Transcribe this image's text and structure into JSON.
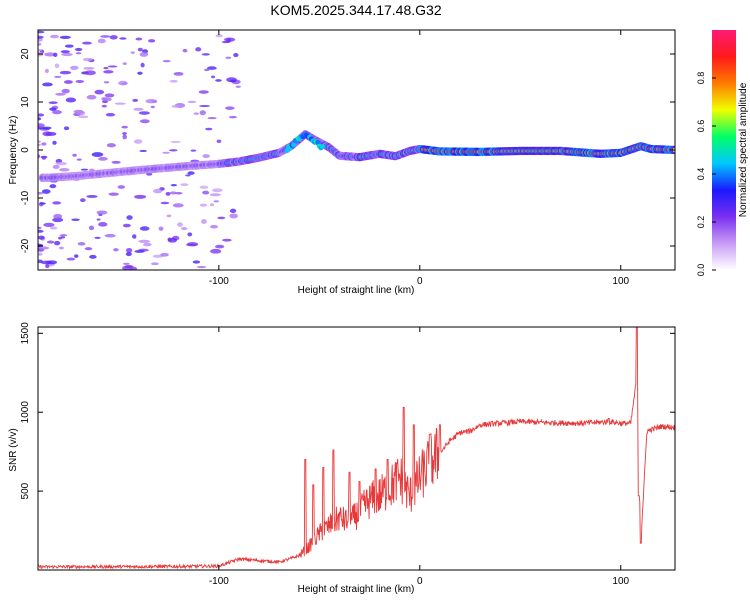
{
  "title": "KOM5.2025.344.17.48.G32",
  "chart_data": [
    {
      "type": "heatmap",
      "name": "spectrogram",
      "xlabel": "Height of straight line (km)",
      "ylabel": "Frequency (Hz)",
      "xlim": [
        -190,
        127
      ],
      "ylim": [
        -25,
        25
      ],
      "xticks": [
        -100,
        0,
        100
      ],
      "yticks": [
        -20,
        -10,
        0,
        10,
        20
      ],
      "trend_track": [
        [
          -185,
          -5.8
        ],
        [
          -170,
          -5.4
        ],
        [
          -155,
          -4.8
        ],
        [
          -140,
          -4.2
        ],
        [
          -120,
          -3.5
        ],
        [
          -100,
          -2.9
        ],
        [
          -90,
          -2.4
        ],
        [
          -80,
          -1.6
        ],
        [
          -70,
          -0.6
        ],
        [
          -64,
          0.8
        ],
        [
          -60,
          2.2
        ],
        [
          -57,
          3.3
        ],
        [
          -53,
          2.3
        ],
        [
          -45,
          0.5
        ],
        [
          -40,
          -1.2
        ],
        [
          -30,
          -1.5
        ],
        [
          -20,
          -0.8
        ],
        [
          -12,
          -1.3
        ],
        [
          -5,
          -0.2
        ],
        [
          0,
          0.2
        ],
        [
          10,
          -0.3
        ],
        [
          30,
          -0.4
        ],
        [
          50,
          -0.2
        ],
        [
          70,
          -0.2
        ],
        [
          90,
          -0.8
        ],
        [
          100,
          -0.6
        ],
        [
          110,
          0.8
        ],
        [
          115,
          0.2
        ],
        [
          127,
          0.0
        ]
      ],
      "colorbar": {
        "label": "Normalized spectral amplitude",
        "range": [
          0,
          1
        ],
        "ticks": [
          "0.0",
          "0.2",
          "0.4",
          "0.6",
          "0.8"
        ],
        "tick_values": [
          0.0,
          0.2,
          0.4,
          0.6,
          0.8
        ],
        "colors": [
          "#ffffff",
          "#c89cf6",
          "#7a2ff0",
          "#1a1aff",
          "#00c8ff",
          "#00ff66",
          "#f0ff00",
          "#ff7a00",
          "#ff1a1a",
          "#ff1a78"
        ]
      }
    },
    {
      "type": "line",
      "name": "snr",
      "xlabel": "Height of straight line (km)",
      "ylabel": "SNR (v/v)",
      "xlim": [
        -190,
        127
      ],
      "ylim": [
        0,
        1540
      ],
      "xticks": [
        -100,
        0,
        100
      ],
      "yticks": [
        500,
        1000,
        1500
      ],
      "color": "#e8393a",
      "trend": [
        [
          -190,
          20
        ],
        [
          -120,
          22
        ],
        [
          -100,
          25
        ],
        [
          -90,
          70
        ],
        [
          -80,
          60
        ],
        [
          -70,
          50
        ],
        [
          -60,
          90
        ],
        [
          -55,
          150
        ],
        [
          -50,
          230
        ],
        [
          -45,
          280
        ],
        [
          -40,
          330
        ],
        [
          -35,
          300
        ],
        [
          -30,
          370
        ],
        [
          -25,
          440
        ],
        [
          -20,
          470
        ],
        [
          -15,
          520
        ],
        [
          -10,
          590
        ],
        [
          -5,
          470
        ],
        [
          0,
          580
        ],
        [
          5,
          680
        ],
        [
          10,
          740
        ],
        [
          15,
          820
        ],
        [
          20,
          870
        ],
        [
          25,
          880
        ],
        [
          30,
          920
        ],
        [
          40,
          930
        ],
        [
          50,
          940
        ],
        [
          60,
          935
        ],
        [
          80,
          930
        ],
        [
          95,
          940
        ],
        [
          100,
          930
        ],
        [
          105,
          930
        ],
        [
          108,
          1220
        ],
        [
          110,
          170
        ],
        [
          113,
          880
        ],
        [
          120,
          910
        ],
        [
          127,
          905
        ]
      ],
      "spikes": [
        [
          -57,
          700
        ],
        [
          -53,
          540
        ],
        [
          -48,
          650
        ],
        [
          -43,
          760
        ],
        [
          -35,
          620
        ],
        [
          -30,
          560
        ],
        [
          -22,
          640
        ],
        [
          -16,
          700
        ],
        [
          -8,
          1030
        ],
        [
          -3,
          920
        ],
        [
          5,
          860
        ],
        [
          10,
          920
        ],
        [
          94,
          960
        ],
        [
          108,
          1540
        ],
        [
          109,
          470
        ],
        [
          110,
          170
        ]
      ]
    }
  ]
}
